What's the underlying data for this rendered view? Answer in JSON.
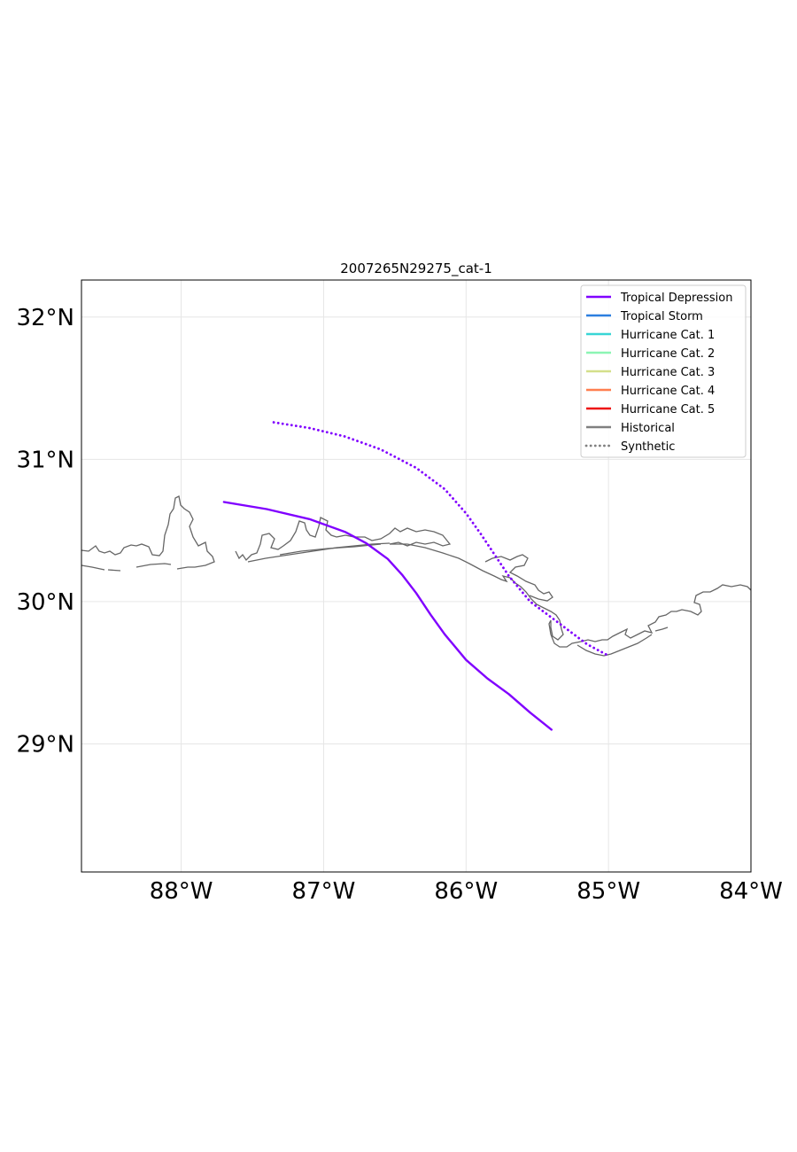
{
  "chart_data": {
    "type": "line",
    "title": "2007265N29275_cat-1",
    "xlim": [
      -88.7,
      -84.0
    ],
    "ylim": [
      28.1,
      32.26
    ],
    "x_ticks": [
      {
        "value": -88,
        "label": "88°W"
      },
      {
        "value": -87,
        "label": "87°W"
      },
      {
        "value": -86,
        "label": "86°W"
      },
      {
        "value": -85,
        "label": "85°W"
      },
      {
        "value": -84,
        "label": "84°W"
      }
    ],
    "y_ticks": [
      {
        "value": 32,
        "label": "32°N"
      },
      {
        "value": 31,
        "label": "31°N"
      },
      {
        "value": 30,
        "label": "30°N"
      },
      {
        "value": 29,
        "label": "29°N"
      }
    ],
    "grid": true,
    "legend_position": "top-right",
    "legend": [
      {
        "label": "Tropical Depression",
        "color": "#8000ff",
        "style": "solid"
      },
      {
        "label": "Tropical Storm",
        "color": "#2c7fe0",
        "style": "solid"
      },
      {
        "label": "Hurricane Cat. 1",
        "color": "#38d6d6",
        "style": "solid"
      },
      {
        "label": "Hurricane Cat. 2",
        "color": "#8cf5b4",
        "style": "solid"
      },
      {
        "label": "Hurricane Cat. 3",
        "color": "#d4df8a",
        "style": "solid"
      },
      {
        "label": "Hurricane Cat. 4",
        "color": "#ff7f4f",
        "style": "solid"
      },
      {
        "label": "Hurricane Cat. 5",
        "color": "#ee1010",
        "style": "solid"
      },
      {
        "label": "Historical",
        "color": "#808080",
        "style": "solid"
      },
      {
        "label": "Synthetic",
        "color": "#808080",
        "style": "dotted"
      }
    ],
    "series": [
      {
        "style": "solid",
        "color": "#8000ff",
        "points": [
          [
            -87.7,
            30.7
          ],
          [
            -87.4,
            30.65
          ],
          [
            -87.1,
            30.58
          ],
          [
            -86.85,
            30.49
          ],
          [
            -86.7,
            30.41
          ],
          [
            -86.55,
            30.3
          ],
          [
            -86.45,
            30.19
          ],
          [
            -86.35,
            30.06
          ],
          [
            -86.25,
            29.91
          ],
          [
            -86.15,
            29.77
          ],
          [
            -86.0,
            29.59
          ],
          [
            -85.85,
            29.46
          ],
          [
            -85.7,
            29.35
          ],
          [
            -85.55,
            29.22
          ],
          [
            -85.4,
            29.1
          ]
        ]
      },
      {
        "style": "dotted",
        "color": "#8000ff",
        "points": [
          [
            -87.35,
            31.26
          ],
          [
            -87.1,
            31.22
          ],
          [
            -86.85,
            31.16
          ],
          [
            -86.6,
            31.07
          ],
          [
            -86.35,
            30.94
          ],
          [
            -86.15,
            30.79
          ],
          [
            -86.0,
            30.62
          ],
          [
            -85.9,
            30.48
          ],
          [
            -85.8,
            30.33
          ],
          [
            -85.7,
            30.18
          ],
          [
            -85.55,
            30.0
          ],
          [
            -85.35,
            29.85
          ],
          [
            -85.15,
            29.7
          ],
          [
            -85.0,
            29.62
          ]
        ]
      }
    ],
    "coastline_color": "#666666"
  }
}
